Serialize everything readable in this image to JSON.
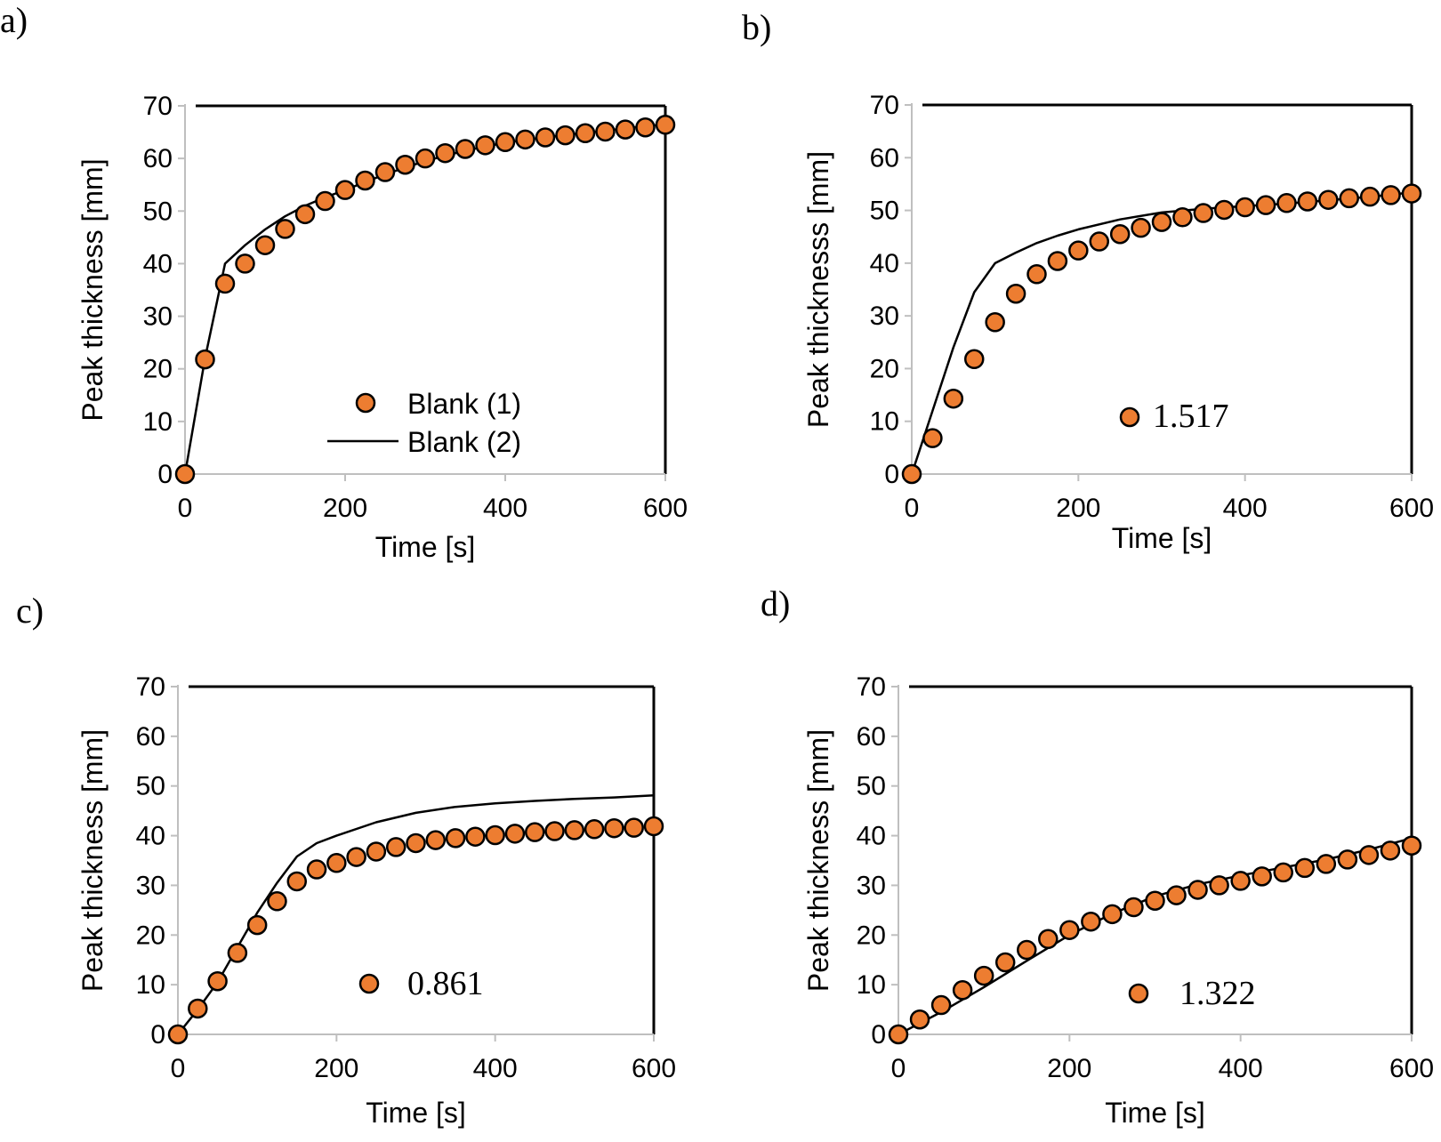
{
  "chart_data": [
    {
      "type": "scatter",
      "panel_label": "a)",
      "xlabel": "Time [s]",
      "ylabel": "Peak thickness [mm]",
      "xlim": [
        0,
        600
      ],
      "ylim": [
        0,
        70
      ],
      "xticks": [
        0,
        200,
        400,
        600
      ],
      "yticks": [
        0,
        10,
        20,
        30,
        40,
        50,
        60,
        70
      ],
      "legend": {
        "placement": "bottom-center",
        "entries": [
          "Blank (1)",
          "Blank (2)"
        ]
      },
      "series": [
        {
          "name": "Blank (1)",
          "kind": "markers",
          "x": [
            0,
            25,
            50,
            75,
            100,
            125,
            150,
            175,
            200,
            225,
            250,
            275,
            300,
            325,
            350,
            375,
            400,
            425,
            450,
            475,
            500,
            525,
            550,
            575,
            600
          ],
          "y": [
            0,
            21.8,
            36.2,
            40.0,
            43.5,
            46.6,
            49.4,
            51.9,
            54.0,
            55.8,
            57.4,
            58.8,
            60.0,
            61.0,
            61.8,
            62.5,
            63.1,
            63.6,
            64.0,
            64.4,
            64.8,
            65.1,
            65.5,
            65.9,
            66.4
          ]
        },
        {
          "name": "Blank (2)",
          "kind": "line",
          "x": [
            0,
            25,
            50,
            75,
            100,
            125,
            150,
            175,
            200,
            250,
            300,
            350,
            400,
            450,
            500,
            550,
            600
          ],
          "y": [
            0,
            22,
            40,
            43.5,
            46.5,
            49.0,
            51.0,
            52.6,
            54.0,
            57.0,
            59.5,
            61.5,
            63.0,
            64.0,
            64.9,
            65.7,
            66.5
          ]
        }
      ]
    },
    {
      "type": "scatter",
      "panel_label": "b)",
      "xlabel": "Time [s]",
      "ylabel": "Peak thicknesss [mm]",
      "xlim": [
        0,
        600
      ],
      "ylim": [
        0,
        70
      ],
      "xticks": [
        0,
        200,
        400,
        600
      ],
      "yticks": [
        0,
        10,
        20,
        30,
        40,
        50,
        60,
        70
      ],
      "legend": {
        "placement": "bottom-center",
        "entries": [
          "1.517"
        ]
      },
      "series": [
        {
          "name": "1.517",
          "kind": "markers",
          "x": [
            0,
            25,
            50,
            75,
            100,
            125,
            150,
            175,
            200,
            225,
            250,
            275,
            300,
            325,
            350,
            375,
            400,
            425,
            450,
            475,
            500,
            525,
            550,
            575,
            600
          ],
          "y": [
            0,
            6.8,
            14.3,
            21.8,
            28.8,
            34.2,
            37.9,
            40.4,
            42.4,
            44.1,
            45.5,
            46.7,
            47.8,
            48.7,
            49.5,
            50.1,
            50.6,
            51.0,
            51.4,
            51.7,
            52.0,
            52.3,
            52.6,
            52.9,
            53.2
          ]
        },
        {
          "name": "",
          "kind": "line",
          "x": [
            0,
            25,
            50,
            75,
            100,
            125,
            150,
            175,
            200,
            250,
            300,
            350,
            400,
            450,
            500,
            550,
            600
          ],
          "y": [
            0,
            12,
            24,
            34.5,
            40,
            42,
            43.8,
            45.2,
            46.4,
            48.3,
            49.6,
            50.3,
            50.8,
            51.3,
            51.9,
            52.6,
            53.4
          ]
        }
      ]
    },
    {
      "type": "scatter",
      "panel_label": "c)",
      "xlabel": "Time [s]",
      "ylabel": "Peak thickness [mm]",
      "xlim": [
        0,
        600
      ],
      "ylim": [
        0,
        70
      ],
      "xticks": [
        0,
        200,
        400,
        600
      ],
      "yticks": [
        0,
        10,
        20,
        30,
        40,
        50,
        60,
        70
      ],
      "legend": {
        "placement": "bottom-center",
        "entries": [
          "0.861"
        ]
      },
      "series": [
        {
          "name": "0.861",
          "kind": "markers",
          "x": [
            0,
            25,
            50,
            75,
            100,
            125,
            150,
            175,
            200,
            225,
            250,
            275,
            300,
            325,
            350,
            375,
            400,
            425,
            450,
            475,
            500,
            525,
            550,
            575,
            600
          ],
          "y": [
            0,
            5.2,
            10.7,
            16.4,
            22.0,
            26.8,
            30.8,
            33.2,
            34.5,
            35.7,
            36.8,
            37.7,
            38.5,
            39.1,
            39.5,
            39.8,
            40.1,
            40.4,
            40.7,
            40.9,
            41.1,
            41.3,
            41.5,
            41.6,
            41.9
          ]
        },
        {
          "name": "",
          "kind": "line",
          "x": [
            0,
            25,
            50,
            75,
            100,
            125,
            150,
            175,
            200,
            250,
            300,
            350,
            400,
            450,
            500,
            550,
            600
          ],
          "y": [
            0,
            5,
            10.5,
            17.5,
            24.5,
            30.5,
            35.8,
            38.5,
            40.0,
            42.7,
            44.6,
            45.8,
            46.5,
            47.0,
            47.4,
            47.7,
            48.1
          ]
        }
      ]
    },
    {
      "type": "scatter",
      "panel_label": "d)",
      "xlabel": "Time [s]",
      "ylabel": "Peak thickness [mm]",
      "xlim": [
        0,
        600
      ],
      "ylim": [
        0,
        70
      ],
      "xticks": [
        0,
        200,
        400,
        600
      ],
      "yticks": [
        0,
        10,
        20,
        30,
        40,
        50,
        60,
        70
      ],
      "legend": {
        "placement": "bottom-center",
        "entries": [
          "1.322"
        ]
      },
      "series": [
        {
          "name": "1.322",
          "kind": "markers",
          "x": [
            0,
            25,
            50,
            75,
            100,
            125,
            150,
            175,
            200,
            225,
            250,
            275,
            300,
            325,
            350,
            375,
            400,
            425,
            450,
            475,
            500,
            525,
            550,
            575,
            600
          ],
          "y": [
            0,
            3.0,
            5.9,
            8.9,
            11.8,
            14.5,
            17.0,
            19.2,
            21.0,
            22.7,
            24.2,
            25.6,
            26.9,
            28.0,
            29.1,
            30.0,
            30.9,
            31.8,
            32.6,
            33.5,
            34.3,
            35.2,
            36.1,
            37.0,
            38.0
          ]
        },
        {
          "name": "",
          "kind": "line",
          "x": [
            0,
            50,
            100,
            150,
            200,
            250,
            300,
            350,
            400,
            450,
            500,
            550,
            600
          ],
          "y": [
            0,
            4.5,
            9.5,
            14.8,
            20.0,
            24.3,
            27.8,
            30.2,
            32.0,
            33.6,
            35.2,
            37.2,
            39.5
          ]
        }
      ]
    }
  ],
  "colors": {
    "marker_fill": "#ED7D31",
    "marker_stroke": "#000000",
    "line": "#000000",
    "frame": "#000000",
    "axis": "#BFBFBF"
  }
}
